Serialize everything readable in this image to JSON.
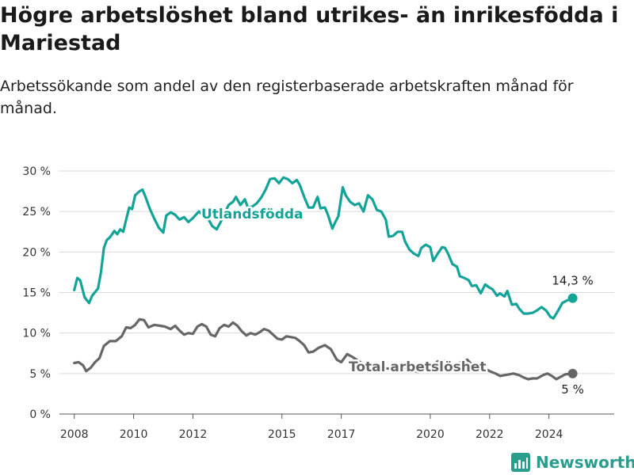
{
  "title": "Högre arbetslöshet bland utrikes- än inrikesfödda i Mariestad",
  "subtitle": "Arbetssökande som andel av den registerbaserade arbetskraften månad för månad.",
  "brand": {
    "name": "Newsworthy",
    "color": "#2a9d8f",
    "icon": "bar-chart-logo-icon"
  },
  "chart_data": {
    "type": "line",
    "xlim": [
      2007.5,
      2026.2
    ],
    "ylim": [
      0,
      30
    ],
    "y_ticks": [
      0,
      5,
      10,
      15,
      20,
      25,
      30
    ],
    "y_tick_labels": [
      "0 %",
      "5 %",
      "10 %",
      "15 %",
      "20 %",
      "25 %",
      "30 %"
    ],
    "x_ticks": [
      2008,
      2010,
      2012,
      2015,
      2017,
      2020,
      2022,
      2024
    ],
    "x_tick_labels": [
      "2008",
      "2010",
      "2012",
      "2015",
      "2017",
      "2020",
      "2022",
      "2024"
    ],
    "grid": "horizontal",
    "series": [
      {
        "name": "Utlandsfödda",
        "color": "#13a398",
        "end_label": "14,3 %",
        "points": [
          [
            2008.0,
            15.3
          ],
          [
            2008.1,
            16.8
          ],
          [
            2008.2,
            16.5
          ],
          [
            2008.35,
            14.4
          ],
          [
            2008.5,
            13.7
          ],
          [
            2008.6,
            14.6
          ],
          [
            2008.8,
            15.5
          ],
          [
            2008.9,
            17.5
          ],
          [
            2009.0,
            20.5
          ],
          [
            2009.1,
            21.5
          ],
          [
            2009.2,
            21.8
          ],
          [
            2009.35,
            22.6
          ],
          [
            2009.45,
            22.2
          ],
          [
            2009.55,
            22.8
          ],
          [
            2009.65,
            22.5
          ],
          [
            2009.75,
            24.0
          ],
          [
            2009.85,
            25.5
          ],
          [
            2009.95,
            25.3
          ],
          [
            2010.05,
            27.0
          ],
          [
            2010.2,
            27.5
          ],
          [
            2010.3,
            27.7
          ],
          [
            2010.4,
            26.8
          ],
          [
            2010.55,
            25.3
          ],
          [
            2010.7,
            24.1
          ],
          [
            2010.85,
            23.0
          ],
          [
            2011.0,
            22.4
          ],
          [
            2011.1,
            24.5
          ],
          [
            2011.25,
            24.9
          ],
          [
            2011.4,
            24.6
          ],
          [
            2011.55,
            24.0
          ],
          [
            2011.7,
            24.3
          ],
          [
            2011.85,
            23.7
          ],
          [
            2012.0,
            24.2
          ],
          [
            2012.2,
            25.0
          ],
          [
            2012.35,
            24.5
          ],
          [
            2012.5,
            24.2
          ],
          [
            2012.65,
            23.2
          ],
          [
            2012.8,
            22.8
          ],
          [
            2012.95,
            23.8
          ],
          [
            2013.1,
            25.0
          ],
          [
            2013.2,
            25.8
          ],
          [
            2013.35,
            26.2
          ],
          [
            2013.45,
            26.8
          ],
          [
            2013.6,
            25.8
          ],
          [
            2013.75,
            26.5
          ],
          [
            2013.85,
            25.5
          ],
          [
            2014.0,
            25.6
          ],
          [
            2014.15,
            26.0
          ],
          [
            2014.3,
            26.7
          ],
          [
            2014.45,
            27.7
          ],
          [
            2014.6,
            29.0
          ],
          [
            2014.75,
            29.1
          ],
          [
            2014.9,
            28.5
          ],
          [
            2015.05,
            29.2
          ],
          [
            2015.2,
            29.0
          ],
          [
            2015.35,
            28.5
          ],
          [
            2015.5,
            28.9
          ],
          [
            2015.6,
            28.3
          ],
          [
            2015.75,
            26.8
          ],
          [
            2015.9,
            25.5
          ],
          [
            2016.05,
            25.5
          ],
          [
            2016.2,
            26.8
          ],
          [
            2016.3,
            25.4
          ],
          [
            2016.45,
            25.5
          ],
          [
            2016.55,
            24.6
          ],
          [
            2016.7,
            22.9
          ],
          [
            2016.8,
            23.7
          ],
          [
            2016.9,
            24.4
          ],
          [
            2017.05,
            28.0
          ],
          [
            2017.15,
            27.0
          ],
          [
            2017.3,
            26.2
          ],
          [
            2017.45,
            25.8
          ],
          [
            2017.6,
            26.0
          ],
          [
            2017.75,
            25.0
          ],
          [
            2017.9,
            27.0
          ],
          [
            2018.05,
            26.5
          ],
          [
            2018.2,
            25.2
          ],
          [
            2018.35,
            25.0
          ],
          [
            2018.5,
            24.0
          ],
          [
            2018.6,
            21.9
          ],
          [
            2018.75,
            22.0
          ],
          [
            2018.9,
            22.5
          ],
          [
            2019.05,
            22.5
          ],
          [
            2019.15,
            21.3
          ],
          [
            2019.3,
            20.3
          ],
          [
            2019.45,
            19.8
          ],
          [
            2019.6,
            19.5
          ],
          [
            2019.7,
            20.5
          ],
          [
            2019.85,
            20.9
          ],
          [
            2020.0,
            20.6
          ],
          [
            2020.1,
            18.9
          ],
          [
            2020.25,
            19.8
          ],
          [
            2020.4,
            20.6
          ],
          [
            2020.5,
            20.5
          ],
          [
            2020.6,
            19.8
          ],
          [
            2020.75,
            18.5
          ],
          [
            2020.9,
            18.2
          ],
          [
            2021.0,
            17.0
          ],
          [
            2021.15,
            16.8
          ],
          [
            2021.3,
            16.5
          ],
          [
            2021.4,
            15.8
          ],
          [
            2021.55,
            15.9
          ],
          [
            2021.7,
            14.9
          ],
          [
            2021.85,
            16.0
          ],
          [
            2022.0,
            15.6
          ],
          [
            2022.1,
            15.4
          ],
          [
            2022.25,
            14.6
          ],
          [
            2022.35,
            14.9
          ],
          [
            2022.5,
            14.5
          ],
          [
            2022.6,
            15.2
          ],
          [
            2022.75,
            13.5
          ],
          [
            2022.9,
            13.6
          ],
          [
            2023.0,
            13.0
          ],
          [
            2023.15,
            12.4
          ],
          [
            2023.3,
            12.4
          ],
          [
            2023.45,
            12.5
          ],
          [
            2023.6,
            12.8
          ],
          [
            2023.75,
            13.2
          ],
          [
            2023.9,
            12.8
          ],
          [
            2024.05,
            12.0
          ],
          [
            2024.15,
            11.8
          ],
          [
            2024.3,
            12.7
          ],
          [
            2024.45,
            13.7
          ],
          [
            2024.6,
            14.0
          ],
          [
            2024.8,
            14.3
          ]
        ]
      },
      {
        "name": "Total arbetslöshet",
        "color": "#666666",
        "end_label": "5 %",
        "points": [
          [
            2008.0,
            6.3
          ],
          [
            2008.15,
            6.4
          ],
          [
            2008.3,
            6.0
          ],
          [
            2008.4,
            5.3
          ],
          [
            2008.55,
            5.7
          ],
          [
            2008.7,
            6.4
          ],
          [
            2008.85,
            6.9
          ],
          [
            2009.0,
            8.4
          ],
          [
            2009.2,
            9.0
          ],
          [
            2009.4,
            9.0
          ],
          [
            2009.6,
            9.6
          ],
          [
            2009.75,
            10.7
          ],
          [
            2009.9,
            10.6
          ],
          [
            2010.05,
            11.0
          ],
          [
            2010.2,
            11.7
          ],
          [
            2010.35,
            11.6
          ],
          [
            2010.5,
            10.7
          ],
          [
            2010.7,
            11.0
          ],
          [
            2010.9,
            10.9
          ],
          [
            2011.05,
            10.8
          ],
          [
            2011.25,
            10.5
          ],
          [
            2011.4,
            10.9
          ],
          [
            2011.55,
            10.3
          ],
          [
            2011.7,
            9.8
          ],
          [
            2011.85,
            10.0
          ],
          [
            2012.0,
            9.9
          ],
          [
            2012.15,
            10.8
          ],
          [
            2012.3,
            11.1
          ],
          [
            2012.45,
            10.8
          ],
          [
            2012.6,
            9.8
          ],
          [
            2012.75,
            9.6
          ],
          [
            2012.9,
            10.6
          ],
          [
            2013.05,
            11.0
          ],
          [
            2013.2,
            10.8
          ],
          [
            2013.35,
            11.3
          ],
          [
            2013.5,
            10.9
          ],
          [
            2013.65,
            10.2
          ],
          [
            2013.8,
            9.7
          ],
          [
            2013.95,
            10.0
          ],
          [
            2014.1,
            9.8
          ],
          [
            2014.25,
            10.1
          ],
          [
            2014.4,
            10.5
          ],
          [
            2014.55,
            10.3
          ],
          [
            2014.7,
            9.8
          ],
          [
            2014.85,
            9.3
          ],
          [
            2015.0,
            9.2
          ],
          [
            2015.15,
            9.6
          ],
          [
            2015.3,
            9.5
          ],
          [
            2015.45,
            9.4
          ],
          [
            2015.6,
            9.0
          ],
          [
            2015.75,
            8.5
          ],
          [
            2015.9,
            7.6
          ],
          [
            2016.05,
            7.7
          ],
          [
            2016.25,
            8.2
          ],
          [
            2016.45,
            8.5
          ],
          [
            2016.65,
            8.0
          ],
          [
            2016.85,
            6.7
          ],
          [
            2017.0,
            6.4
          ],
          [
            2017.2,
            7.4
          ],
          [
            2017.4,
            7.0
          ],
          [
            2017.6,
            6.5
          ],
          [
            2017.8,
            6.0
          ],
          [
            2018.0,
            6.1
          ],
          [
            2018.2,
            5.5
          ],
          [
            2018.4,
            5.7
          ],
          [
            2018.6,
            5.6
          ],
          [
            2018.8,
            5.3
          ],
          [
            2019.0,
            5.9
          ],
          [
            2019.2,
            5.6
          ],
          [
            2019.4,
            5.4
          ],
          [
            2019.6,
            5.2
          ],
          [
            2019.8,
            5.6
          ],
          [
            2020.0,
            5.8
          ],
          [
            2020.25,
            6.5
          ],
          [
            2020.45,
            6.6
          ],
          [
            2020.65,
            6.3
          ],
          [
            2020.85,
            5.8
          ],
          [
            2021.05,
            6.5
          ],
          [
            2021.25,
            6.7
          ],
          [
            2021.45,
            5.9
          ],
          [
            2021.65,
            5.4
          ],
          [
            2021.85,
            5.6
          ],
          [
            2022.0,
            5.3
          ],
          [
            2022.2,
            5.0
          ],
          [
            2022.35,
            4.7
          ],
          [
            2022.5,
            4.8
          ],
          [
            2022.65,
            4.9
          ],
          [
            2022.8,
            5.0
          ],
          [
            2023.0,
            4.8
          ],
          [
            2023.15,
            4.5
          ],
          [
            2023.3,
            4.3
          ],
          [
            2023.45,
            4.4
          ],
          [
            2023.6,
            4.4
          ],
          [
            2023.8,
            4.8
          ],
          [
            2023.95,
            5.0
          ],
          [
            2024.1,
            4.7
          ],
          [
            2024.25,
            4.3
          ],
          [
            2024.4,
            4.6
          ],
          [
            2024.55,
            4.9
          ],
          [
            2024.8,
            5.0
          ]
        ]
      }
    ]
  }
}
